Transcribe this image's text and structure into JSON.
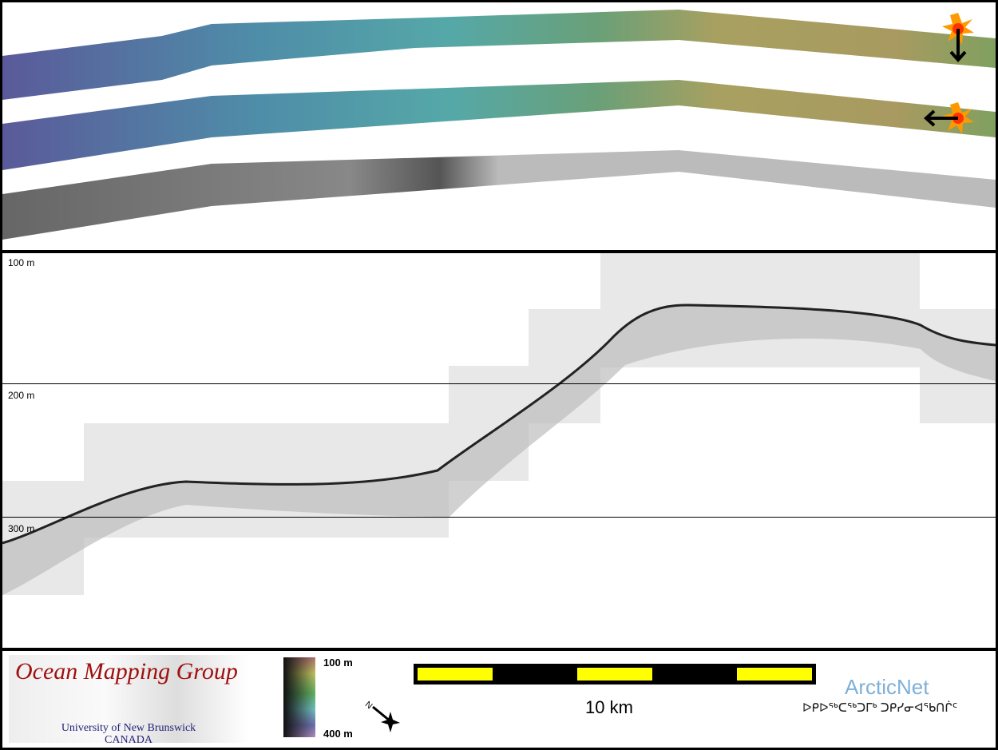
{
  "profile": {
    "depth_labels": [
      "100 m",
      "200 m",
      "300 m"
    ]
  },
  "legend": {
    "logo_title": "Ocean Mapping Group",
    "logo_university": "University of New Brunswick",
    "logo_country": "CANADA",
    "colorbar_top": "100 m",
    "colorbar_bottom": "400 m",
    "north_label": "N",
    "scale_label": "10 km",
    "arcticnet_title": "ArcticNet",
    "arcticnet_syllabics": "ᐅᑭᐅᖅᑕᖅᑐᒥᒃ ᑐᑭᓯᓂᐊᖃᑎᒌᑦ"
  },
  "colors": {
    "scale_yellow": "#ffff00",
    "sun": "#ff9900"
  }
}
